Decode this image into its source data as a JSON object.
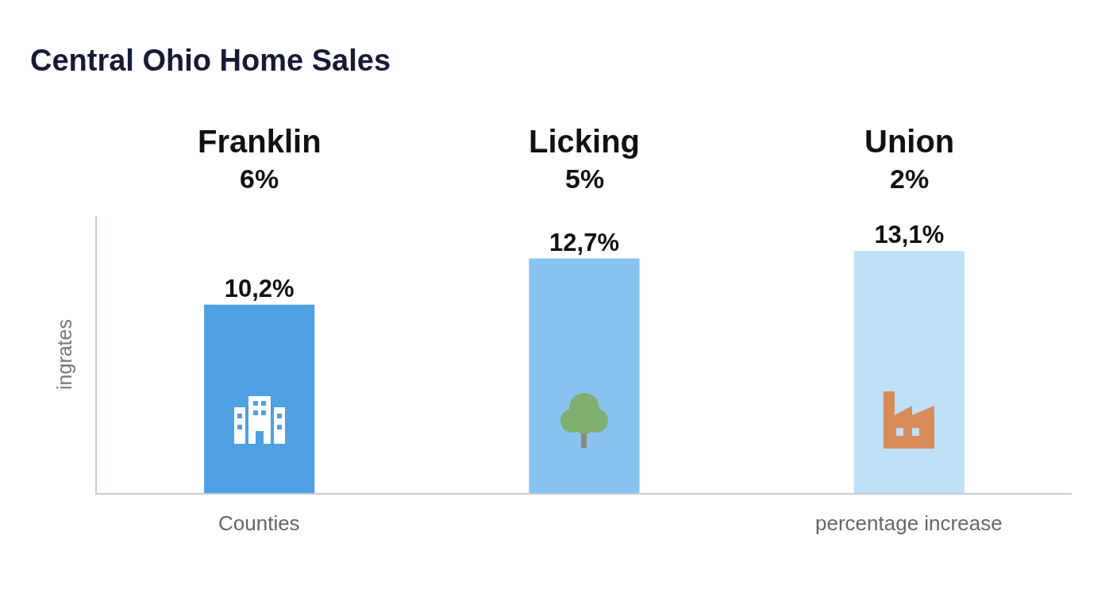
{
  "chart_data": {
    "type": "bar",
    "title": "Central Ohio Home Sales",
    "categories": [
      "Franklin",
      "Licking",
      "Union"
    ],
    "values": [
      10.2,
      12.7,
      13.1
    ],
    "colors": [
      "#4f9fe3",
      "#89c3ef",
      "#bfe0f7"
    ],
    "value_labels": [
      "10,2%",
      "12,7%",
      "13,1%"
    ],
    "ylim": [
      0,
      15
    ],
    "tick_labels": false,
    "grid": false,
    "xlabel": "Counties",
    "ylabel": "ingrates",
    "annotations": [
      "6%",
      "5%",
      "2%",
      "percentage increase"
    ]
  }
}
